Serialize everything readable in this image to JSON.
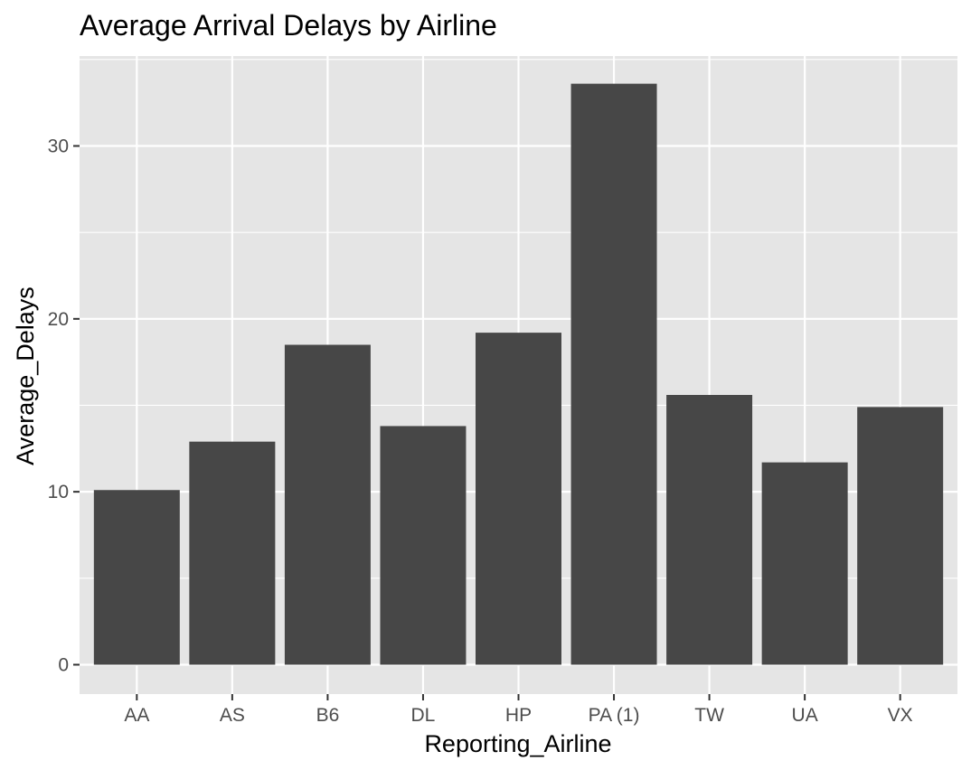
{
  "chart_data": {
    "type": "bar",
    "title": "Average Arrival Delays by Airline",
    "xlabel": "Reporting_Airline",
    "ylabel": "Average_Delays",
    "categories": [
      "AA",
      "AS",
      "B6",
      "DL",
      "HP",
      "PA (1)",
      "TW",
      "UA",
      "VX"
    ],
    "values": [
      10.1,
      12.9,
      18.5,
      13.8,
      19.2,
      33.6,
      15.6,
      11.7,
      14.9
    ],
    "yticks": [
      0,
      10,
      20,
      30
    ],
    "ylim": [
      -1.7,
      35.2
    ],
    "grid": true,
    "legend": "none",
    "colors": {
      "bar": "#474747",
      "panel": "#e5e5e5",
      "grid": "#ffffff",
      "tick_text": "#4d4d4d",
      "tick_mark": "#333333"
    }
  }
}
